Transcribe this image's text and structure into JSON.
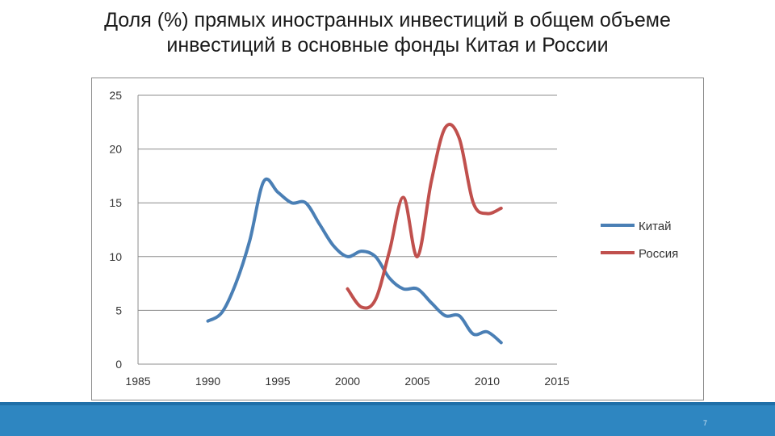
{
  "slide": {
    "title_line1": "Доля (%) прямых иностранных инвестиций в общем объеме",
    "title_line2": "инвестиций в основные фонды Китая и России",
    "page_number": "7"
  },
  "colors": {
    "china": "#4a7fb5",
    "russia": "#c0504d",
    "footer": "#2e86c1"
  },
  "chart_data": {
    "type": "line",
    "title": "",
    "xlabel": "",
    "ylabel": "",
    "xlim": [
      1985,
      2015
    ],
    "ylim": [
      0,
      25
    ],
    "x_ticks": [
      "1985",
      "1990",
      "1995",
      "2000",
      "2005",
      "2010",
      "2015"
    ],
    "y_ticks": [
      "0",
      "5",
      "10",
      "15",
      "20",
      "25"
    ],
    "grid": "horizontal",
    "legend": "right",
    "series": [
      {
        "name": "Китай",
        "x": [
          1990,
          1991,
          1992,
          1993,
          1994,
          1995,
          1996,
          1997,
          1998,
          1999,
          2000,
          2001,
          2002,
          2003,
          2004,
          2005,
          2006,
          2007,
          2008,
          2009,
          2010,
          2011
        ],
        "y": [
          4.0,
          4.8,
          7.5,
          11.5,
          17.0,
          16.0,
          15.0,
          15.0,
          13.0,
          11.0,
          10.0,
          10.5,
          10.0,
          8.0,
          7.0,
          7.0,
          5.7,
          4.5,
          4.5,
          2.8,
          3.0,
          2.0
        ]
      },
      {
        "name": "Россия",
        "x": [
          2000,
          2001,
          2002,
          2003,
          2004,
          2005,
          2006,
          2007,
          2008,
          2009,
          2010,
          2011
        ],
        "y": [
          7.0,
          5.3,
          6.0,
          10.5,
          15.5,
          10.0,
          17.0,
          22.0,
          21.0,
          15.0,
          14.0,
          14.5
        ]
      }
    ]
  }
}
